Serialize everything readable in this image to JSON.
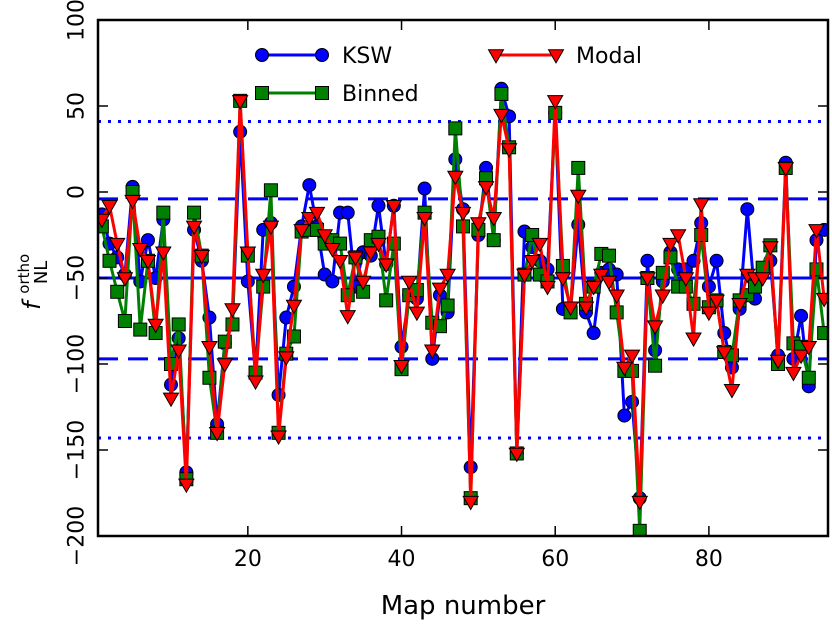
{
  "chart_data": {
    "type": "line",
    "title": "",
    "xlabel": "Map number",
    "ylabel": "f",
    "ylabel_sub": "NL",
    "ylabel_sup": "ortho",
    "xlim": [
      0.5,
      95.5
    ],
    "ylim": [
      -200,
      100
    ],
    "xticks": [
      20,
      40,
      60,
      80
    ],
    "yticks": [
      -200,
      -150,
      -100,
      -50,
      0,
      50,
      100
    ],
    "grid": false,
    "legend_position": "top-center",
    "reference_lines": [
      {
        "name": "mean",
        "y": -50,
        "style": "solid",
        "color": "#0000ff"
      },
      {
        "name": "plus-1-sigma",
        "y": -4,
        "style": "dashed",
        "color": "#0000ff"
      },
      {
        "name": "minus-1-sigma",
        "y": -97,
        "style": "dashed",
        "color": "#0000ff"
      },
      {
        "name": "plus-2-sigma",
        "y": 41,
        "style": "dotted",
        "color": "#0000ff"
      },
      {
        "name": "minus-2-sigma",
        "y": -143,
        "style": "dotted",
        "color": "#0000ff"
      }
    ],
    "x": [
      1,
      2,
      3,
      4,
      5,
      6,
      7,
      8,
      9,
      10,
      11,
      12,
      13,
      14,
      15,
      16,
      17,
      18,
      19,
      20,
      21,
      22,
      23,
      24,
      25,
      26,
      27,
      28,
      29,
      30,
      31,
      32,
      33,
      34,
      35,
      36,
      37,
      38,
      39,
      40,
      41,
      42,
      43,
      44,
      45,
      46,
      47,
      48,
      49,
      50,
      51,
      52,
      53,
      54,
      55,
      56,
      57,
      58,
      59,
      60,
      61,
      62,
      63,
      64,
      65,
      66,
      67,
      68,
      69,
      70,
      71,
      72,
      73,
      74,
      75,
      76,
      77,
      78,
      79,
      80,
      81,
      82,
      83,
      84,
      85,
      86,
      87,
      88,
      89,
      90,
      91,
      92,
      93,
      94,
      95
    ],
    "series": [
      {
        "name": "KSW",
        "color": "#0000ff",
        "marker": "circle",
        "values": [
          -13,
          -30,
          -38,
          -48,
          3,
          -52,
          -28,
          -50,
          -16,
          -112,
          -85,
          -163,
          -22,
          -40,
          -73,
          -135,
          -88,
          -77,
          35,
          -52,
          -106,
          -22,
          -18,
          -118,
          -73,
          -55,
          -20,
          4,
          -20,
          -48,
          -52,
          -12,
          -12,
          -55,
          -35,
          -37,
          -8,
          -42,
          -8,
          -90,
          -60,
          -62,
          2,
          -97,
          -60,
          -70,
          19,
          -10,
          -160,
          -25,
          14,
          -28,
          60,
          44,
          -152,
          -23,
          -32,
          -40,
          -45,
          46,
          -68,
          -68,
          -19,
          -70,
          -82,
          -47,
          -45,
          -48,
          -130,
          -122,
          -178,
          -40,
          -92,
          -52,
          -35,
          -45,
          -45,
          -40,
          -18,
          -55,
          -40,
          -82,
          -102,
          -68,
          -10,
          -62,
          -45,
          -40,
          -95,
          17,
          -97,
          -72,
          -113,
          -28,
          -22
        ]
      },
      {
        "name": "Binned",
        "color": "#008000",
        "marker": "square",
        "values": [
          -20,
          -40,
          -58,
          -75,
          0,
          -80,
          -40,
          -82,
          -12,
          -100,
          -77,
          -167,
          -12,
          -37,
          -108,
          -140,
          -87,
          -77,
          53,
          -37,
          -105,
          -55,
          1,
          -140,
          -94,
          -84,
          -23,
          -22,
          -22,
          -30,
          -28,
          -30,
          -60,
          -38,
          -58,
          -28,
          -26,
          -63,
          -30,
          -103,
          -60,
          -57,
          -12,
          -76,
          -78,
          -66,
          37,
          -20,
          -178,
          -22,
          8,
          -28,
          57,
          26,
          -152,
          -48,
          -25,
          -48,
          -52,
          46,
          -43,
          -70,
          14,
          -65,
          -55,
          -36,
          -37,
          -70,
          -104,
          -104,
          -197,
          -50,
          -101,
          -47,
          -38,
          -55,
          -55,
          -65,
          -25,
          -67,
          -63,
          -93,
          -95,
          -63,
          -60,
          -55,
          -44,
          -31,
          -100,
          14,
          -88,
          -90,
          -108,
          -45,
          -82
        ]
      },
      {
        "name": "Modal",
        "color": "#ff0000",
        "marker": "triangle-down",
        "values": [
          -16,
          -8,
          -30,
          -50,
          -5,
          -33,
          -40,
          -77,
          -35,
          -120,
          -92,
          -170,
          -20,
          -37,
          -90,
          -140,
          -100,
          -68,
          53,
          -35,
          -110,
          -48,
          -20,
          -142,
          -96,
          -66,
          -22,
          -15,
          -12,
          -25,
          -33,
          -40,
          -72,
          -38,
          -52,
          -35,
          -30,
          -42,
          -8,
          -101,
          -52,
          -70,
          -15,
          -92,
          -56,
          -48,
          9,
          -12,
          -180,
          -18,
          3,
          -15,
          45,
          25,
          -152,
          -48,
          -40,
          -30,
          -55,
          53,
          -50,
          -67,
          -2,
          -67,
          -55,
          -48,
          -52,
          -60,
          -102,
          -95,
          -180,
          -50,
          -78,
          -60,
          -30,
          -25,
          -50,
          -85,
          -7,
          -70,
          -63,
          -93,
          -115,
          -65,
          -48,
          -50,
          -50,
          -32,
          -98,
          14,
          -105,
          -95,
          -90,
          -22,
          -62
        ]
      }
    ]
  }
}
